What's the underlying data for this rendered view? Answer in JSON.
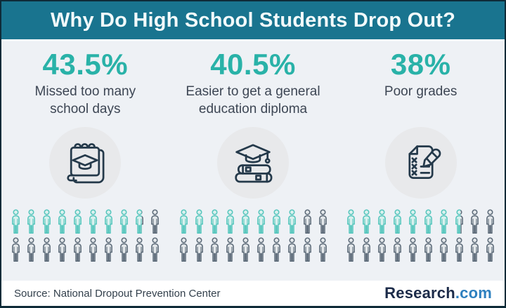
{
  "header": {
    "title": "Why Do High School Students Drop Out?"
  },
  "columns": [
    {
      "percent": "43.5%",
      "label": "Missed too many\nschool days",
      "icon": "calendar-graduation-icon",
      "pictograph": {
        "total": 20,
        "per_row": 10,
        "filled": 8.7
      }
    },
    {
      "percent": "40.5%",
      "label": "Easier to get a general\neducation diploma",
      "icon": "books-graduation-icon",
      "pictograph": {
        "total": 20,
        "per_row": 10,
        "filled": 8.1
      }
    },
    {
      "percent": "38%",
      "label": "Poor grades",
      "icon": "exam-pencil-icon",
      "pictograph": {
        "total": 20,
        "per_row": 10,
        "filled": 7.6
      }
    }
  ],
  "footer": {
    "source": "Source: National Dropout Prevention Center",
    "brand_name": "Research",
    "brand_tld": ".com"
  },
  "colors": {
    "header_bg": "#19748F",
    "accent_teal": "#29B2A8",
    "person_filled_stroke": "#56C6BD",
    "person_filled_fill": "#DAF0EE",
    "person_empty_stroke": "#5D6B79",
    "person_empty_fill": "#E4E8EB",
    "icon_stroke": "#24394A",
    "brand_navy": "#1C2B49",
    "brand_blue": "#2E80BF",
    "frame_border": "#0E2B38"
  },
  "chart_data": {
    "type": "bar",
    "variant": "pictograph",
    "title": "Why Do High School Students Drop Out?",
    "categories": [
      "Missed too many school days",
      "Easier to get a general education diploma",
      "Poor grades"
    ],
    "values": [
      43.5,
      40.5,
      38
    ],
    "unit": "%",
    "icons_per_category": 20,
    "percent_per_icon": 5,
    "filled_icons": [
      8.7,
      8.1,
      7.6
    ],
    "legend": "none",
    "grid": false,
    "source": "National Dropout Prevention Center"
  }
}
